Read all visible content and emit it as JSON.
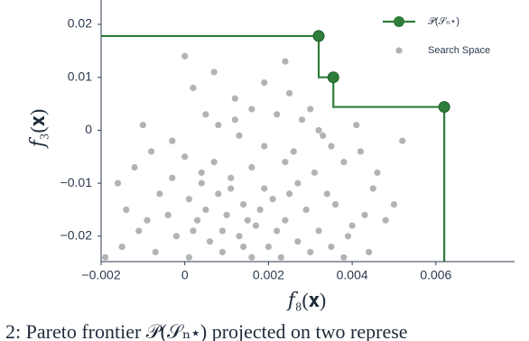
{
  "chart_data": {
    "type": "scatter",
    "xlabel": "𝑓₈(𝐱)",
    "ylabel": "𝑓₃(𝐱)",
    "caption": "2: Pareto frontier 𝒫(𝒮ₙ⋆) projected on two represe",
    "xlim": [
      -0.002,
      0.00788
    ],
    "ylim": [
      -0.0248,
      0.0246
    ],
    "xticks": [
      {
        "value": -0.002,
        "label": "−0.002"
      },
      0,
      0.002,
      0.004,
      0.006
    ],
    "yticks": [
      {
        "value": -0.02,
        "label": "−0.02"
      },
      {
        "value": -0.01,
        "label": "−0.01"
      },
      0,
      0.01,
      0.02
    ],
    "legend": "upper right",
    "series": [
      {
        "name": "𝒫(𝒮ₙ⋆)",
        "type": "step",
        "color": "#2e7d3a",
        "x": [
          0.0032,
          0.00355,
          0.0062
        ],
        "y": [
          0.0178,
          0.01,
          0.0044
        ]
      },
      {
        "name": "Search Space",
        "type": "scatter",
        "color": "#9a9a9a",
        "x": [
          0.0,
          0.0024,
          0.0036,
          0.0052,
          0.0002,
          0.0012,
          0.0025,
          0.0016,
          0.0005,
          0.0022,
          0.0008,
          0.0028,
          0.0032,
          -0.0003,
          0.0013,
          0.0019,
          0.0035,
          0.0042,
          -0.0008,
          0.0,
          0.0007,
          0.0016,
          0.0024,
          0.0031,
          0.0038,
          -0.0012,
          -0.0003,
          0.0004,
          0.0011,
          0.0019,
          0.0027,
          0.0034,
          0.0045,
          -0.0016,
          -0.0006,
          0.0001,
          0.0008,
          0.0014,
          0.0021,
          0.0029,
          0.0036,
          0.0043,
          -0.0014,
          -0.0004,
          0.0003,
          0.001,
          0.0017,
          0.0024,
          0.0032,
          0.004,
          0.0048,
          -0.0011,
          -0.0002,
          0.0006,
          0.0013,
          0.002,
          0.0027,
          0.0035,
          0.0044,
          -0.0015,
          -0.0007,
          0.0001,
          0.0009,
          0.0016,
          0.0023,
          0.003,
          0.0038,
          -0.0019,
          0.0011,
          0.0005,
          0.0015,
          0.0009,
          0.0018,
          0.0022,
          0.0004,
          0.0026,
          0.0012,
          0.003,
          0.0041,
          0.0019,
          -0.001,
          0.0007,
          0.0046,
          0.005,
          0.0033,
          0.0002,
          0.0014,
          0.0025,
          -0.0009,
          0.0039
        ],
        "y": [
          0.014,
          0.013,
          0.01,
          -0.002,
          0.008,
          0.006,
          0.007,
          0.004,
          0.003,
          0.003,
          0.001,
          0.002,
          0.0,
          -0.002,
          -0.001,
          -0.003,
          -0.003,
          -0.004,
          -0.004,
          -0.005,
          -0.006,
          -0.007,
          -0.006,
          -0.008,
          -0.006,
          -0.007,
          -0.009,
          -0.01,
          -0.009,
          -0.011,
          -0.01,
          -0.012,
          -0.011,
          -0.01,
          -0.012,
          -0.013,
          -0.012,
          -0.014,
          -0.013,
          -0.015,
          -0.014,
          -0.016,
          -0.015,
          -0.016,
          -0.017,
          -0.016,
          -0.018,
          -0.017,
          -0.019,
          -0.018,
          -0.017,
          -0.019,
          -0.02,
          -0.021,
          -0.02,
          -0.022,
          -0.021,
          -0.022,
          -0.023,
          -0.022,
          -0.023,
          -0.024,
          -0.023,
          -0.024,
          -0.024,
          -0.023,
          -0.024,
          -0.024,
          -0.011,
          -0.015,
          -0.017,
          -0.019,
          -0.015,
          -0.019,
          -0.008,
          -0.004,
          0.002,
          0.004,
          0.001,
          0.009,
          0.001,
          0.011,
          -0.008,
          -0.014,
          -0.001,
          -0.019,
          -0.022,
          -0.012,
          -0.017,
          -0.02
        ]
      }
    ]
  }
}
